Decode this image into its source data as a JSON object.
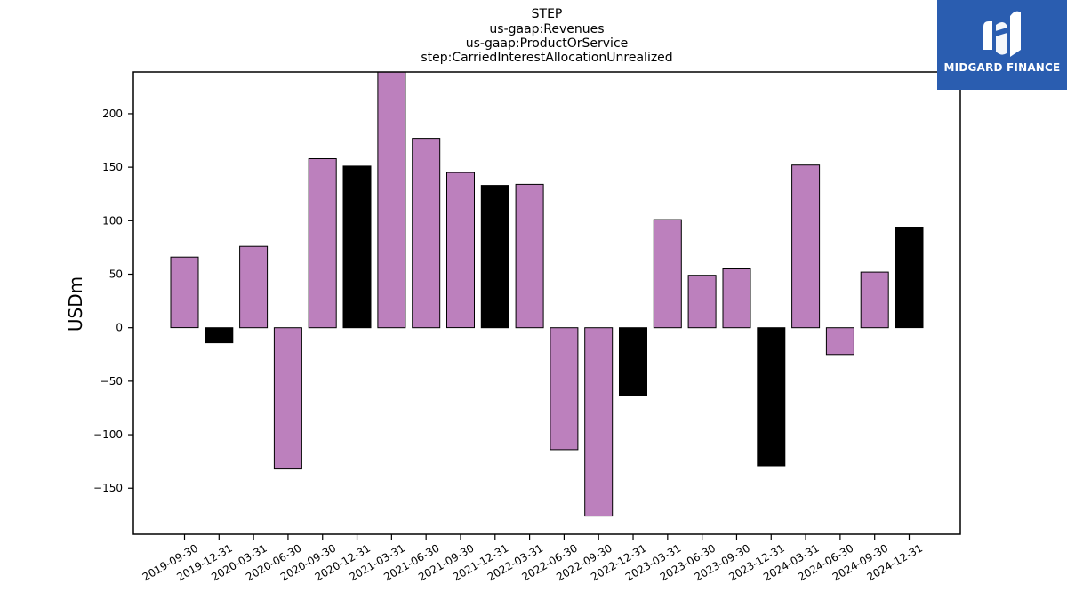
{
  "chart_data": {
    "type": "bar",
    "title_lines": [
      "STEP",
      "us-gaap:Revenues",
      "us-gaap:ProductOrService",
      "step:CarriedInterestAllocationUnrealized"
    ],
    "xlabel": "",
    "ylabel": "USDm",
    "ylim": [
      -193,
      239
    ],
    "yticks": [
      -150,
      -100,
      -50,
      0,
      50,
      100,
      150,
      200
    ],
    "grid": false,
    "colors": {
      "quarter": "#bc80bd",
      "year_end": "#000000",
      "edge": "#000000"
    },
    "categories": [
      "2019-09-30",
      "2019-12-31",
      "2020-03-31",
      "2020-06-30",
      "2020-09-30",
      "2020-12-31",
      "2021-03-31",
      "2021-06-30",
      "2021-09-30",
      "2021-12-31",
      "2022-03-31",
      "2022-06-30",
      "2022-09-30",
      "2022-12-31",
      "2023-03-31",
      "2023-06-30",
      "2023-09-30",
      "2023-12-31",
      "2024-03-31",
      "2024-06-30",
      "2024-09-30",
      "2024-12-31"
    ],
    "values": [
      66,
      -14,
      76,
      -132,
      158,
      151,
      239,
      177,
      145,
      133,
      134,
      -114,
      -176,
      -63,
      101,
      49,
      55,
      -129,
      152,
      -25,
      52,
      94
    ],
    "year_end": [
      false,
      true,
      false,
      false,
      false,
      true,
      false,
      false,
      false,
      true,
      false,
      false,
      false,
      true,
      false,
      false,
      false,
      true,
      false,
      false,
      false,
      true
    ]
  },
  "logo": {
    "text": "MIDGARD FINANCE",
    "icon": "midgard-logo-icon",
    "background": "#2a5db0"
  }
}
